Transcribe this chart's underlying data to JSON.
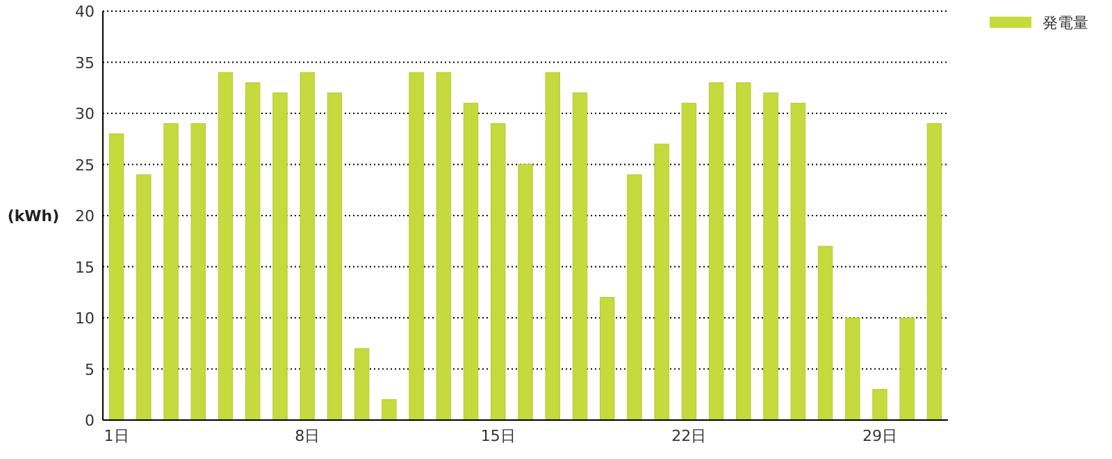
{
  "chart_data": {
    "type": "bar",
    "ylabel": "(kWh)",
    "categories": [
      "1日",
      null,
      null,
      null,
      null,
      null,
      null,
      "8日",
      null,
      null,
      null,
      null,
      null,
      null,
      "15日",
      null,
      null,
      null,
      null,
      null,
      null,
      "22日",
      null,
      null,
      null,
      null,
      null,
      null,
      "29日",
      null,
      null
    ],
    "series": [
      {
        "name": "発電量",
        "color": "#c5da3c",
        "values": [
          28,
          24,
          29,
          29,
          34,
          33,
          32,
          34,
          32,
          7,
          2,
          34,
          34,
          31,
          29,
          25,
          34,
          32,
          12,
          24,
          27,
          31,
          33,
          33,
          32,
          31,
          17,
          10,
          3,
          10,
          29
        ]
      }
    ],
    "ylim": [
      0,
      40
    ],
    "yticks": [
      0,
      5,
      10,
      15,
      20,
      25,
      30,
      35,
      40
    ],
    "grid": "y",
    "legend": "top right"
  }
}
